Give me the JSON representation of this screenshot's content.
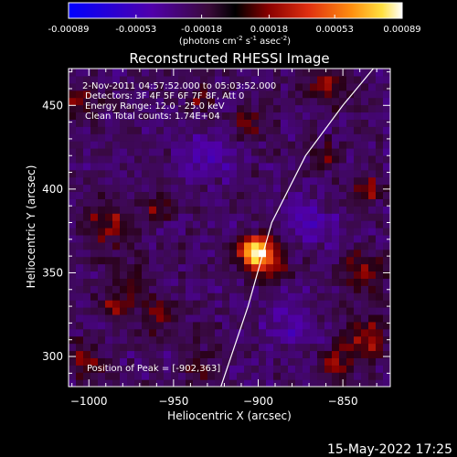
{
  "colorbar": {
    "ticks": [
      "-0.00089",
      "-0.00053",
      "-0.00018",
      "0.00018",
      "0.00053",
      "0.00089"
    ],
    "tick_values": [
      -0.00089,
      -0.00053,
      -0.00018,
      0.00018,
      0.00053,
      0.00089
    ],
    "range": [
      -0.00089,
      0.00089
    ],
    "units_prefix": "(photons cm",
    "units_exp1": "-2",
    "units_mid": " s",
    "units_exp2": "-1",
    "units_mid2": " asec",
    "units_exp3": "-2",
    "units_suffix": ")"
  },
  "plot": {
    "title": "Reconstructed RHESSI Image",
    "info": [
      " 2-Nov-2011 04:57:52.000 to 05:03:52.000",
      "Detectors: 3F 4F 5F 6F 7F 8F, Att 0",
      "Energy Range: 12.0 - 25.0 keV",
      "Clean    Total counts: 1.74E+04"
    ],
    "peak_label": "Position of Peak = [-902,363]"
  },
  "footer": {
    "date": "15-May-2022 17:25"
  },
  "chart_data": {
    "type": "heatmap",
    "title": "Reconstructed RHESSI Image",
    "xlabel": "Heliocentric X (arcsec)",
    "ylabel": "Heliocentric Y (arcsec)",
    "xlim": [
      -1012,
      -822
    ],
    "ylim": [
      282,
      472
    ],
    "x_ticks": [
      -1000,
      -950,
      -900,
      -850
    ],
    "x_tick_labels": [
      "−1000",
      "−950",
      "−900",
      "−850"
    ],
    "y_ticks": [
      300,
      350,
      400,
      450
    ],
    "y_tick_labels": [
      "300",
      "350",
      "400",
      "450"
    ],
    "colormap": "flux",
    "color_range": [
      -0.00089,
      0.00089
    ],
    "peak": {
      "x": -902,
      "y": 363,
      "value": 0.00089
    },
    "limb_curve": [
      [
        -922,
        282
      ],
      [
        -906,
        330
      ],
      [
        -892,
        380
      ],
      [
        -872,
        420
      ],
      [
        -850,
        450
      ],
      [
        -832,
        472
      ]
    ],
    "sources": [
      {
        "x": -902,
        "y": 363,
        "sigma": 6,
        "amp": 0.00095
      },
      {
        "x": -895,
        "y": 357,
        "sigma": 9,
        "amp": 0.0004
      },
      {
        "x": -988,
        "y": 380,
        "sigma": 10,
        "amp": 0.00035
      },
      {
        "x": -960,
        "y": 390,
        "sigma": 6,
        "amp": 0.0003
      },
      {
        "x": -975,
        "y": 343,
        "sigma": 8,
        "amp": 0.0003
      },
      {
        "x": -985,
        "y": 330,
        "sigma": 5,
        "amp": 0.00035
      },
      {
        "x": -960,
        "y": 325,
        "sigma": 8,
        "amp": 0.00025
      },
      {
        "x": -1003,
        "y": 298,
        "sigma": 8,
        "amp": 0.00035
      },
      {
        "x": -935,
        "y": 297,
        "sigma": 7,
        "amp": 0.00025
      },
      {
        "x": -860,
        "y": 462,
        "sigma": 8,
        "amp": 0.00035
      },
      {
        "x": -905,
        "y": 440,
        "sigma": 7,
        "amp": 0.0003
      },
      {
        "x": -860,
        "y": 420,
        "sigma": 6,
        "amp": 0.0003
      },
      {
        "x": -835,
        "y": 400,
        "sigma": 7,
        "amp": 0.0003
      },
      {
        "x": -838,
        "y": 350,
        "sigma": 9,
        "amp": 0.00035
      },
      {
        "x": -836,
        "y": 310,
        "sigma": 9,
        "amp": 0.0004
      },
      {
        "x": -855,
        "y": 296,
        "sigma": 7,
        "amp": 0.0003
      },
      {
        "x": -1005,
        "y": 452,
        "sigma": 7,
        "amp": 0.0003
      },
      {
        "x": -935,
        "y": 455,
        "sigma": 6,
        "amp": 0.00025
      },
      {
        "x": -930,
        "y": 420,
        "sigma": 10,
        "amp": -0.00025
      },
      {
        "x": -870,
        "y": 380,
        "sigma": 10,
        "amp": -0.00025
      },
      {
        "x": -880,
        "y": 320,
        "sigma": 10,
        "amp": -0.0002
      }
    ]
  }
}
